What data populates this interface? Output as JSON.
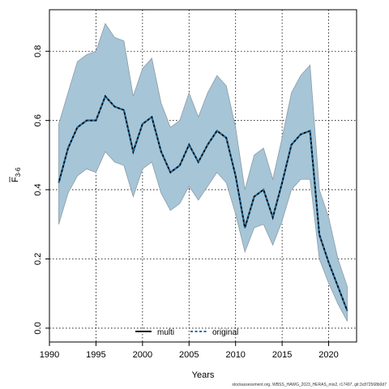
{
  "chart_data": {
    "type": "line",
    "title": "",
    "xlabel": "Years",
    "ylabel_main": "F",
    "ylabel_sub": "3-6",
    "xlim": [
      1990,
      2023
    ],
    "ylim": [
      -0.04,
      0.92
    ],
    "xticks": [
      1990,
      1995,
      2000,
      2005,
      2010,
      2015,
      2020
    ],
    "yticks": [
      0.0,
      0.2,
      0.4,
      0.6,
      0.8
    ],
    "ytick_labels": [
      "0.0",
      "0.2",
      "0.4",
      "0.6",
      "0.8"
    ],
    "grid": true,
    "legend_position": "bottom",
    "x": [
      1991,
      1992,
      1993,
      1994,
      1995,
      1996,
      1997,
      1998,
      1999,
      2000,
      2001,
      2002,
      2003,
      2004,
      2005,
      2006,
      2007,
      2008,
      2009,
      2010,
      2011,
      2012,
      2013,
      2014,
      2015,
      2016,
      2017,
      2018,
      2019,
      2020,
      2021,
      2022
    ],
    "band": {
      "color": "#a6c5d7",
      "edge_color": "#8c9ca6",
      "upper": [
        0.59,
        0.68,
        0.77,
        0.79,
        0.8,
        0.88,
        0.84,
        0.83,
        0.67,
        0.75,
        0.78,
        0.65,
        0.58,
        0.6,
        0.68,
        0.61,
        0.68,
        0.73,
        0.7,
        0.58,
        0.4,
        0.5,
        0.52,
        0.43,
        0.55,
        0.68,
        0.73,
        0.76,
        0.4,
        0.32,
        0.2,
        0.12
      ],
      "lower": [
        0.3,
        0.39,
        0.44,
        0.46,
        0.45,
        0.51,
        0.48,
        0.47,
        0.38,
        0.46,
        0.48,
        0.39,
        0.34,
        0.36,
        0.41,
        0.37,
        0.41,
        0.45,
        0.42,
        0.33,
        0.22,
        0.29,
        0.3,
        0.24,
        0.31,
        0.4,
        0.43,
        0.43,
        0.2,
        0.13,
        0.07,
        0.02
      ]
    },
    "series": [
      {
        "name": "multi",
        "color": "#000000",
        "style": "solid",
        "values": [
          0.42,
          0.52,
          0.58,
          0.6,
          0.6,
          0.67,
          0.64,
          0.63,
          0.51,
          0.59,
          0.61,
          0.51,
          0.45,
          0.47,
          0.53,
          0.48,
          0.53,
          0.57,
          0.55,
          0.44,
          0.29,
          0.38,
          0.4,
          0.32,
          0.42,
          0.53,
          0.56,
          0.57,
          0.27,
          0.19,
          0.12,
          0.05
        ]
      },
      {
        "name": "original",
        "color": "#1e6ea0",
        "style": "dashed",
        "values": [
          0.42,
          0.52,
          0.58,
          0.6,
          0.6,
          0.67,
          0.64,
          0.63,
          0.51,
          0.59,
          0.61,
          0.51,
          0.45,
          0.47,
          0.53,
          0.48,
          0.53,
          0.57,
          0.55,
          0.44,
          0.29,
          0.38,
          0.4,
          0.32,
          0.42,
          0.53,
          0.56,
          0.57,
          0.27,
          0.19,
          0.12,
          0.05
        ]
      }
    ]
  },
  "footer": {
    "text": "stockassessment.org, WBSS_HAWG_2023_HERAS_mix2, r17497, git:3c872568b0d7"
  }
}
